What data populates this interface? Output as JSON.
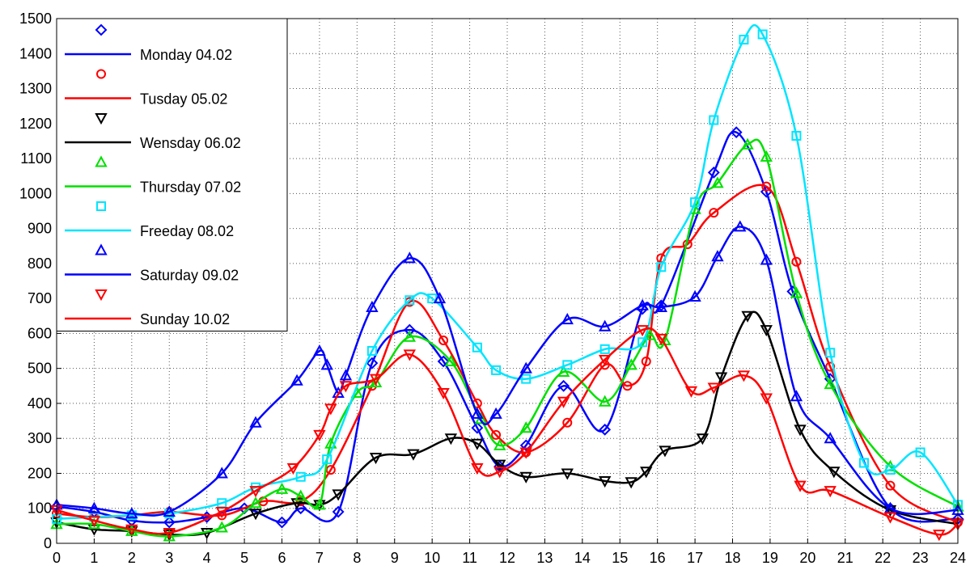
{
  "chart_data": {
    "type": "line",
    "legend": "upper left",
    "grid": true,
    "smooth": true,
    "xlim": [
      0,
      24
    ],
    "xticks": [
      0,
      1,
      2,
      3,
      4,
      5,
      6,
      7,
      8,
      9,
      10,
      11,
      12,
      13,
      14,
      15,
      16,
      17,
      18,
      19,
      20,
      21,
      22,
      23,
      24
    ],
    "ylim": [
      0,
      1500
    ],
    "yticks": [
      0,
      100,
      200,
      300,
      400,
      500,
      600,
      700,
      800,
      900,
      1000,
      1100,
      1200,
      1300,
      1400,
      1500
    ],
    "series": [
      {
        "name": "Monday 04.02",
        "color": "#0000ff",
        "marker": "diamond",
        "x": [
          0,
          1,
          2,
          3,
          4,
          5,
          6,
          6.5,
          7.5,
          8.4,
          9.4,
          10.3,
          11.2,
          11.8,
          12.5,
          13.5,
          14.6,
          15.6,
          16.1,
          17.5,
          18.1,
          18.9,
          19.6,
          20.6,
          22.2,
          24
        ],
        "values": [
          105,
          90,
          65,
          60,
          75,
          100,
          60,
          100,
          90,
          515,
          610,
          520,
          330,
          220,
          280,
          450,
          325,
          670,
          680,
          1060,
          1175,
          1005,
          720,
          470,
          100,
          70
        ]
      },
      {
        "name": "Tusday 05.02",
        "color": "#ff0000",
        "marker": "circle",
        "x": [
          0,
          1,
          2,
          3,
          4.4,
          5.5,
          6.5,
          7.3,
          8.4,
          9.4,
          10.3,
          11.2,
          11.7,
          12.5,
          13.6,
          14.6,
          15.2,
          15.7,
          16.1,
          16.8,
          17.5,
          18.9,
          19.7,
          20.6,
          22.2,
          24
        ],
        "values": [
          85,
          75,
          80,
          90,
          80,
          120,
          120,
          210,
          450,
          690,
          580,
          400,
          310,
          260,
          345,
          510,
          450,
          520,
          815,
          855,
          945,
          1020,
          805,
          505,
          165,
          60
        ]
      },
      {
        "name": "Wensday 06.02",
        "color": "#000000",
        "marker": "triangle-down",
        "x": [
          0,
          1,
          2,
          3,
          4,
          5.3,
          6.4,
          7,
          7.5,
          8.5,
          9.5,
          10.5,
          11.2,
          11.8,
          12.5,
          13.6,
          14.6,
          15.3,
          15.7,
          16.2,
          17.2,
          17.7,
          18.4,
          18.9,
          19.8,
          20.7,
          22.2,
          24
        ],
        "values": [
          60,
          40,
          35,
          25,
          30,
          85,
          115,
          110,
          140,
          245,
          255,
          300,
          285,
          225,
          190,
          200,
          178,
          175,
          205,
          265,
          300,
          475,
          650,
          610,
          325,
          205,
          95,
          55
        ]
      },
      {
        "name": "Thursday 07.02",
        "color": "#00e000",
        "marker": "triangle-up",
        "x": [
          0,
          1,
          2,
          3,
          4.4,
          5.3,
          6,
          6.5,
          7,
          7.3,
          8,
          8.5,
          9.4,
          10.5,
          11.3,
          11.8,
          12.5,
          13.5,
          14.6,
          15.3,
          15.8,
          16.2,
          17,
          17.6,
          18.4,
          18.9,
          19.7,
          20.6,
          22.2,
          24
        ],
        "values": [
          55,
          55,
          35,
          20,
          45,
          115,
          155,
          135,
          110,
          285,
          430,
          460,
          590,
          520,
          355,
          280,
          330,
          490,
          405,
          510,
          595,
          580,
          955,
          1030,
          1140,
          1105,
          715,
          455,
          220,
          105
        ]
      },
      {
        "name": "Freeday 08.02",
        "color": "#00e5ff",
        "marker": "square",
        "x": [
          0,
          1,
          2,
          3,
          4.4,
          5.3,
          6.5,
          7.2,
          8.4,
          9.4,
          10,
          11.2,
          11.7,
          12.5,
          13.6,
          14.6,
          15.6,
          16.1,
          17,
          17.5,
          18.3,
          18.8,
          19.7,
          20.6,
          21.5,
          22.2,
          23,
          24
        ],
        "values": [
          70,
          75,
          80,
          85,
          115,
          160,
          190,
          240,
          550,
          695,
          700,
          560,
          495,
          470,
          510,
          555,
          575,
          790,
          975,
          1210,
          1440,
          1455,
          1165,
          545,
          230,
          210,
          260,
          110
        ]
      },
      {
        "name": "Saturday 09.02",
        "color": "#0000ff",
        "marker": "triangle-up",
        "x": [
          0,
          1,
          2,
          3,
          4.4,
          5.3,
          6.4,
          7,
          7.2,
          7.5,
          7.7,
          8.4,
          9.4,
          10.2,
          11.2,
          11.7,
          12.5,
          13.6,
          14.6,
          15.6,
          16.1,
          17,
          17.6,
          18.2,
          18.9,
          19.7,
          20.6,
          22.2,
          24
        ],
        "values": [
          110,
          100,
          85,
          90,
          200,
          345,
          465,
          550,
          510,
          430,
          480,
          675,
          815,
          700,
          370,
          370,
          500,
          640,
          620,
          680,
          675,
          705,
          820,
          905,
          810,
          420,
          300,
          100,
          95
        ]
      },
      {
        "name": "Sunday 10.02",
        "color": "#ff0000",
        "marker": "triangle-down",
        "x": [
          0,
          1,
          2,
          3,
          4.4,
          5.3,
          6.3,
          7,
          7.3,
          7.7,
          8.5,
          9.4,
          10.3,
          11.2,
          11.8,
          12.5,
          13.5,
          14.6,
          15.6,
          16.1,
          16.9,
          17.5,
          18.3,
          18.9,
          19.8,
          20.6,
          22.2,
          23.5,
          24
        ],
        "values": [
          95,
          65,
          40,
          30,
          90,
          150,
          215,
          310,
          385,
          450,
          470,
          540,
          430,
          215,
          205,
          260,
          405,
          525,
          610,
          585,
          435,
          445,
          480,
          415,
          165,
          150,
          75,
          25,
          55
        ]
      }
    ]
  }
}
